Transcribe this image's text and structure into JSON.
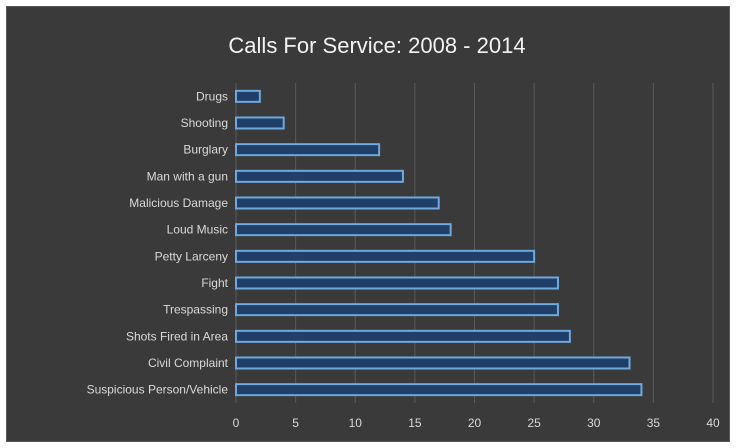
{
  "chart_data": {
    "type": "bar",
    "orientation": "horizontal",
    "title": "Calls For Service: 2008 - 2014",
    "categories": [
      "Drugs",
      "Shooting",
      "Burglary",
      "Man with a gun",
      "Malicious Damage",
      "Loud Music",
      "Petty Larceny",
      "Fight",
      "Trespassing",
      "Shots Fired in Area",
      "Civil Complaint",
      "Suspicious Person/Vehicle"
    ],
    "values": [
      2,
      4,
      12,
      14,
      17,
      18,
      25,
      27,
      27,
      28,
      33,
      34
    ],
    "xlim": [
      0,
      40
    ],
    "xticks": [
      "0",
      "5",
      "10",
      "15",
      "20",
      "25",
      "30",
      "35",
      "40"
    ],
    "grid": true,
    "legend": "none",
    "colors": {
      "background": "#3a3a3a",
      "bar_fill": "#1f3f68",
      "bar_edge": "#6fa8dc",
      "grid": "#595959",
      "text": "#d9d9d9",
      "title": "#f2f2f2"
    }
  }
}
